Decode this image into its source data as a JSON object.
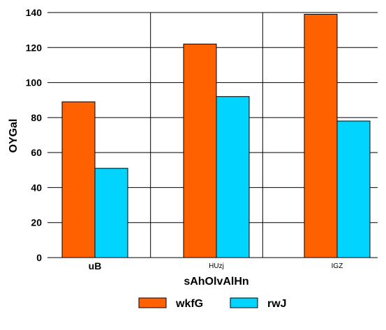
{
  "chart_data": {
    "type": "bar",
    "title": "",
    "xlabel": "sAhOlvAlHn",
    "ylabel": "OYGal",
    "categories": [
      "uB",
      "HUzj",
      "IGZ"
    ],
    "series": [
      {
        "name": "wkfG",
        "color": "#ff6000",
        "values": [
          89,
          122,
          139
        ]
      },
      {
        "name": "rwJ",
        "color": "#00d4ff",
        "values": [
          51,
          92,
          78
        ]
      }
    ],
    "ylim": [
      0,
      140
    ],
    "yticks": [
      0,
      20,
      40,
      60,
      80,
      100,
      120,
      140
    ],
    "grid": "horizontal",
    "legend": "bottom-center"
  }
}
